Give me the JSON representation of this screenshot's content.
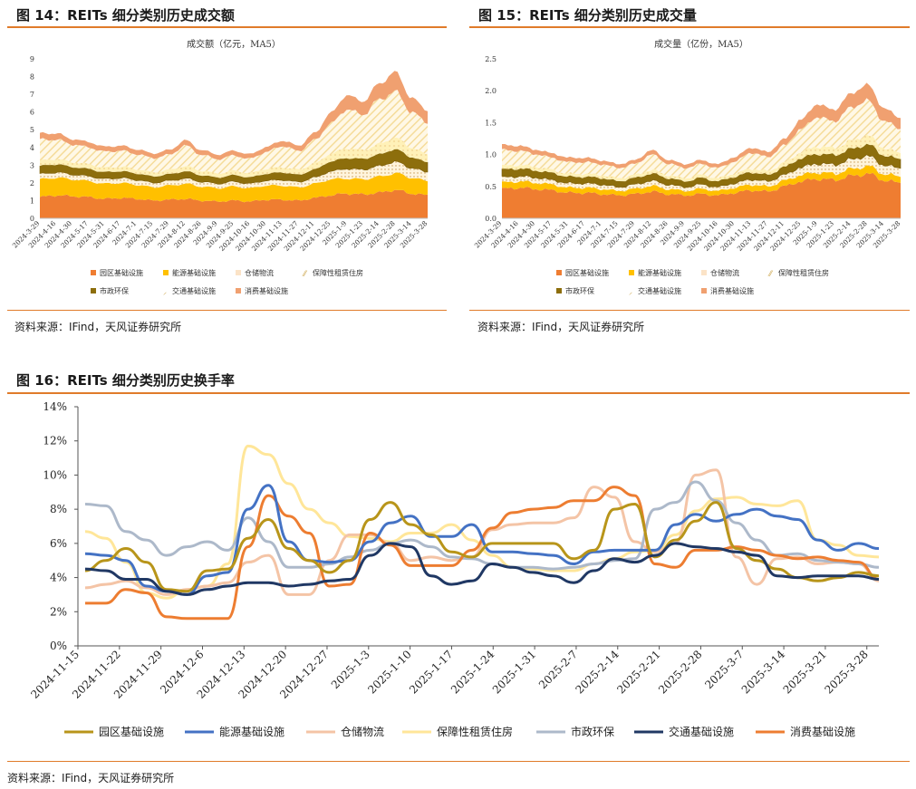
{
  "panels": {
    "fig14": {
      "title": "图 14：REITs 细分类别历史成交额",
      "source": "资料来源：IFind，天风证券研究所"
    },
    "fig15": {
      "title": "图 15：REITs 细分类别历史成交量",
      "source": "资料来源：IFind，天风证券研究所"
    },
    "fig16": {
      "title": "图 16：REITs 细分类别历史换手率",
      "source": "资料来源：IFind，天风证券研究所"
    }
  },
  "colors": {
    "accent_rule": "#e07b2a",
    "园区基础设施": "#ef7d31",
    "能源基础设施": "#ffc000",
    "仓储物流": "#fbe3c7",
    "保障性租赁住房": "#f5dc9a",
    "市政环保": "#8d6e0c",
    "交通基础设施": "#fff1b8",
    "消费基础设施": "#f0a070",
    "line_园区基础设施": "#b8951a",
    "line_能源基础设施": "#4472c4",
    "line_仓储物流": "#f4c4a6",
    "line_保障性租赁住房": "#ffe699",
    "line_市政环保": "#adb9ca",
    "line_交通基础设施": "#203864",
    "line_消费基础设施": "#ed7d31"
  },
  "chart_data": [
    {
      "type": "area",
      "stacked": true,
      "title": "成交额（亿元，MA5）",
      "ylim": [
        0,
        9
      ],
      "yticks": [
        0,
        1,
        2,
        3,
        4,
        5,
        6,
        7,
        8,
        9
      ],
      "x_tick_labels": [
        "2024-3-29",
        "2024-4-16",
        "2024-4-30",
        "2024-5-17",
        "2024-5-31",
        "2024-6-17",
        "2024-7-1",
        "2024-7-15",
        "2024-7-29",
        "2024-8-12",
        "2024-8-26",
        "2024-9-9",
        "2024-9-25",
        "2024-10-16",
        "2024-10-30",
        "2024-11-13",
        "2024-11-27",
        "2024-12-11",
        "2024-12-25",
        "2025-1-9",
        "2025-1-23",
        "2025-2-14",
        "2025-2-28",
        "2025-3-14",
        "2025-3-28"
      ],
      "legend_position": "bottom",
      "series": [
        {
          "name": "园区基础设施",
          "values": [
            1.2,
            1.3,
            1.25,
            1.2,
            1.1,
            1.15,
            1.1,
            1.0,
            1.05,
            1.1,
            1.0,
            0.95,
            1.0,
            0.95,
            1.05,
            1.05,
            1.0,
            1.15,
            1.3,
            1.4,
            1.35,
            1.45,
            1.6,
            1.4,
            1.3
          ]
        },
        {
          "name": "能源基础设施",
          "values": [
            1.0,
            1.0,
            0.95,
            0.9,
            0.85,
            0.85,
            0.8,
            0.75,
            0.8,
            0.85,
            0.8,
            0.75,
            0.8,
            0.75,
            0.8,
            0.8,
            0.75,
            0.8,
            0.9,
            0.85,
            0.85,
            0.9,
            0.95,
            0.9,
            0.8
          ]
        },
        {
          "name": "仓储物流",
          "values": [
            0.3,
            0.3,
            0.28,
            0.28,
            0.27,
            0.28,
            0.27,
            0.26,
            0.27,
            0.3,
            0.27,
            0.26,
            0.27,
            0.26,
            0.28,
            0.32,
            0.3,
            0.35,
            0.45,
            0.55,
            0.55,
            0.6,
            0.65,
            0.55,
            0.5
          ]
        },
        {
          "name": "市政环保",
          "values": [
            0.45,
            0.45,
            0.42,
            0.4,
            0.38,
            0.38,
            0.36,
            0.35,
            0.36,
            0.4,
            0.36,
            0.34,
            0.36,
            0.35,
            0.38,
            0.42,
            0.4,
            0.45,
            0.55,
            0.6,
            0.6,
            0.65,
            0.7,
            0.6,
            0.55
          ]
        },
        {
          "name": "交通基础设施",
          "values": [
            0.3,
            0.3,
            0.28,
            0.28,
            0.26,
            0.26,
            0.25,
            0.24,
            0.25,
            0.3,
            0.26,
            0.24,
            0.26,
            0.25,
            0.28,
            0.3,
            0.3,
            0.35,
            0.45,
            0.55,
            0.5,
            0.6,
            0.65,
            0.55,
            0.45
          ]
        },
        {
          "name": "保障性租赁住房",
          "values": [
            1.2,
            1.1,
            1.0,
            0.95,
            0.9,
            0.9,
            0.85,
            0.8,
            0.85,
            1.15,
            0.9,
            0.8,
            0.85,
            0.8,
            0.95,
            1.2,
            1.05,
            1.3,
            1.7,
            2.2,
            2.0,
            2.5,
            2.6,
            2.0,
            1.8
          ]
        },
        {
          "name": "消费基础设施",
          "values": [
            0.35,
            0.35,
            0.3,
            0.3,
            0.28,
            0.28,
            0.27,
            0.26,
            0.27,
            0.3,
            0.27,
            0.26,
            0.27,
            0.26,
            0.28,
            0.3,
            0.3,
            0.4,
            0.6,
            0.8,
            0.75,
            0.9,
            1.1,
            0.8,
            0.7
          ]
        }
      ]
    },
    {
      "type": "area",
      "stacked": true,
      "title": "成交量（亿份，MA5）",
      "ylim": [
        0,
        2.5
      ],
      "yticks": [
        "0.0",
        "0.5",
        "1.0",
        "1.5",
        "2.0",
        "2.5"
      ],
      "x_tick_labels": [
        "2024-3-29",
        "2024-4-16",
        "2024-4-30",
        "2024-5-17",
        "2024-5-31",
        "2024-6-17",
        "2024-7-1",
        "2024-7-15",
        "2024-7-29",
        "2024-8-12",
        "2024-8-26",
        "2024-9-9",
        "2024-9-25",
        "2024-10-16",
        "2024-10-30",
        "2024-11-13",
        "2024-11-27",
        "2024-12-11",
        "2024-12-25",
        "2025-1-9",
        "2025-1-23",
        "2025-2-14",
        "2025-2-28",
        "2025-3-14",
        "2025-3-28"
      ],
      "legend_position": "bottom",
      "series": [
        {
          "name": "园区基础设施",
          "values": [
            0.46,
            0.48,
            0.46,
            0.44,
            0.4,
            0.4,
            0.38,
            0.36,
            0.38,
            0.42,
            0.38,
            0.36,
            0.38,
            0.36,
            0.4,
            0.44,
            0.42,
            0.5,
            0.58,
            0.62,
            0.6,
            0.66,
            0.7,
            0.6,
            0.55
          ]
        },
        {
          "name": "能源基础设施",
          "values": [
            0.1,
            0.1,
            0.1,
            0.09,
            0.08,
            0.08,
            0.08,
            0.07,
            0.08,
            0.09,
            0.08,
            0.07,
            0.08,
            0.07,
            0.08,
            0.09,
            0.08,
            0.09,
            0.1,
            0.1,
            0.1,
            0.11,
            0.12,
            0.1,
            0.1
          ]
        },
        {
          "name": "仓储物流",
          "values": [
            0.08,
            0.08,
            0.08,
            0.07,
            0.07,
            0.07,
            0.07,
            0.06,
            0.07,
            0.08,
            0.07,
            0.06,
            0.07,
            0.06,
            0.07,
            0.08,
            0.08,
            0.09,
            0.12,
            0.14,
            0.14,
            0.15,
            0.16,
            0.14,
            0.13
          ]
        },
        {
          "name": "市政环保",
          "values": [
            0.12,
            0.12,
            0.11,
            0.11,
            0.1,
            0.1,
            0.1,
            0.09,
            0.1,
            0.11,
            0.1,
            0.09,
            0.1,
            0.09,
            0.1,
            0.11,
            0.1,
            0.12,
            0.14,
            0.15,
            0.15,
            0.16,
            0.18,
            0.15,
            0.14
          ]
        },
        {
          "name": "交通基础设施",
          "values": [
            0.06,
            0.06,
            0.06,
            0.05,
            0.05,
            0.05,
            0.05,
            0.05,
            0.05,
            0.06,
            0.05,
            0.05,
            0.05,
            0.05,
            0.05,
            0.06,
            0.06,
            0.07,
            0.1,
            0.12,
            0.11,
            0.13,
            0.14,
            0.12,
            0.1
          ]
        },
        {
          "name": "保障性租赁住房",
          "values": [
            0.25,
            0.22,
            0.2,
            0.19,
            0.18,
            0.18,
            0.17,
            0.16,
            0.17,
            0.24,
            0.18,
            0.16,
            0.17,
            0.16,
            0.19,
            0.25,
            0.22,
            0.27,
            0.36,
            0.46,
            0.42,
            0.52,
            0.55,
            0.42,
            0.38
          ]
        },
        {
          "name": "消费基础设施",
          "values": [
            0.08,
            0.08,
            0.07,
            0.07,
            0.07,
            0.07,
            0.06,
            0.06,
            0.06,
            0.07,
            0.06,
            0.06,
            0.06,
            0.06,
            0.07,
            0.08,
            0.08,
            0.1,
            0.15,
            0.2,
            0.18,
            0.22,
            0.25,
            0.2,
            0.17
          ]
        }
      ]
    },
    {
      "type": "line",
      "title": "",
      "ylim": [
        0,
        14
      ],
      "yticks": [
        "0%",
        "2%",
        "4%",
        "6%",
        "8%",
        "10%",
        "12%",
        "14%"
      ],
      "x_tick_labels": [
        "2024-11-15",
        "2024-11-22",
        "2024-11-29",
        "2024-12-6",
        "2024-12-13",
        "2024-12-20",
        "2024-12-27",
        "2025-1-3",
        "2025-1-10",
        "2025-1-17",
        "2025-1-24",
        "2025-1-31",
        "2025-2-7",
        "2025-2-14",
        "2025-2-21",
        "2025-2-28",
        "2025-3-7",
        "2025-3-14",
        "2025-3-21",
        "2025-3-28"
      ],
      "x": [
        "2024-11-15",
        "2024-11-18",
        "2024-11-22",
        "2024-11-26",
        "2024-11-29",
        "2024-12-3",
        "2024-12-6",
        "2024-12-10",
        "2024-12-13",
        "2024-12-17",
        "2024-12-20",
        "2024-12-24",
        "2024-12-27",
        "2024-12-31",
        "2025-1-3",
        "2025-1-7",
        "2025-1-10",
        "2025-1-14",
        "2025-1-17",
        "2025-1-21",
        "2025-1-24",
        "2025-1-28",
        "2025-1-31",
        "2025-2-4",
        "2025-2-7",
        "2025-2-11",
        "2025-2-14",
        "2025-2-18",
        "2025-2-21",
        "2025-2-25",
        "2025-2-28",
        "2025-3-4",
        "2025-3-7",
        "2025-3-11",
        "2025-3-14",
        "2025-3-18",
        "2025-3-21",
        "2025-3-25",
        "2025-3-28",
        "2025-4-1"
      ],
      "legend_position": "bottom",
      "series": [
        {
          "name": "园区基础设施",
          "values": [
            4.4,
            5.0,
            5.7,
            4.9,
            3.3,
            3.2,
            4.4,
            4.5,
            6.3,
            7.4,
            5.7,
            5.0,
            4.3,
            5.0,
            7.4,
            8.4,
            7.1,
            6.5,
            5.5,
            5.2,
            6.0,
            6.0,
            6.0,
            6.0,
            5.1,
            5.6,
            8.0,
            8.3,
            5.2,
            6.2,
            7.3,
            8.4,
            5.7,
            5.0,
            4.5,
            4.0,
            3.8,
            4.0,
            4.3,
            4.1
          ]
        },
        {
          "name": "能源基础设施",
          "values": [
            5.4,
            5.3,
            5.0,
            3.5,
            3.2,
            3.0,
            4.1,
            4.3,
            8.0,
            9.4,
            6.1,
            5.0,
            4.9,
            5.0,
            6.1,
            7.2,
            7.6,
            6.4,
            6.4,
            7.1,
            5.5,
            5.5,
            5.4,
            5.3,
            4.8,
            5.5,
            5.6,
            5.6,
            5.6,
            7.1,
            7.7,
            7.3,
            7.7,
            8.0,
            7.6,
            7.4,
            6.2,
            5.6,
            6.0,
            5.7
          ]
        },
        {
          "name": "仓储物流",
          "values": [
            3.4,
            3.6,
            3.8,
            3.4,
            3.0,
            3.3,
            3.5,
            3.7,
            4.9,
            5.3,
            3.0,
            3.0,
            5.0,
            6.5,
            6.5,
            6.0,
            5.0,
            5.2,
            5.0,
            5.2,
            6.8,
            7.1,
            7.2,
            7.2,
            7.5,
            9.3,
            8.7,
            6.1,
            5.5,
            6.0,
            10.0,
            10.3,
            5.2,
            3.6,
            5.1,
            5.2,
            4.8,
            4.9,
            4.8,
            3.8
          ]
        },
        {
          "name": "保障性租赁住房",
          "values": [
            6.7,
            6.3,
            4.9,
            3.1,
            2.8,
            3.3,
            3.5,
            4.8,
            11.7,
            11.2,
            9.5,
            8.0,
            7.2,
            6.4,
            6.3,
            6.1,
            6.6,
            6.6,
            7.1,
            6.2,
            5.3,
            4.6,
            4.5,
            4.4,
            4.4,
            4.8,
            5.1,
            5.5,
            5.6,
            6.5,
            7.9,
            8.6,
            8.7,
            8.3,
            8.2,
            8.5,
            6.2,
            5.9,
            5.3,
            5.2
          ]
        },
        {
          "name": "市政环保",
          "values": [
            8.3,
            8.2,
            6.7,
            6.2,
            5.3,
            5.8,
            6.1,
            5.6,
            7.5,
            6.1,
            4.6,
            4.6,
            4.8,
            5.2,
            5.6,
            6.0,
            6.2,
            5.8,
            5.2,
            5.1,
            4.8,
            4.6,
            4.6,
            4.5,
            4.6,
            4.8,
            5.0,
            5.1,
            8.0,
            8.4,
            9.6,
            8.5,
            7.2,
            6.2,
            5.3,
            5.4,
            5.0,
            4.9,
            4.8,
            4.6
          ]
        },
        {
          "name": "交通基础设施",
          "values": [
            4.5,
            4.4,
            3.9,
            3.9,
            3.2,
            3.0,
            3.3,
            3.5,
            3.7,
            3.7,
            3.5,
            3.6,
            3.8,
            3.9,
            5.3,
            6.0,
            5.8,
            4.1,
            3.6,
            3.8,
            4.8,
            4.6,
            4.3,
            4.1,
            3.7,
            4.4,
            5.1,
            4.9,
            5.3,
            6.0,
            5.8,
            5.7,
            5.5,
            5.3,
            4.1,
            4.0,
            4.1,
            4.1,
            4.1,
            3.9
          ]
        },
        {
          "name": "消费基础设施",
          "values": [
            2.5,
            2.5,
            3.3,
            3.1,
            1.7,
            1.6,
            1.6,
            1.6,
            5.8,
            8.8,
            7.6,
            6.6,
            3.5,
            3.6,
            6.6,
            5.9,
            4.7,
            4.7,
            4.7,
            5.6,
            6.9,
            7.8,
            8.0,
            8.1,
            8.5,
            8.5,
            9.3,
            8.8,
            4.8,
            4.6,
            5.6,
            5.6,
            5.8,
            5.6,
            5.3,
            5.1,
            5.2,
            5.0,
            4.9,
            3.9
          ]
        }
      ]
    }
  ]
}
